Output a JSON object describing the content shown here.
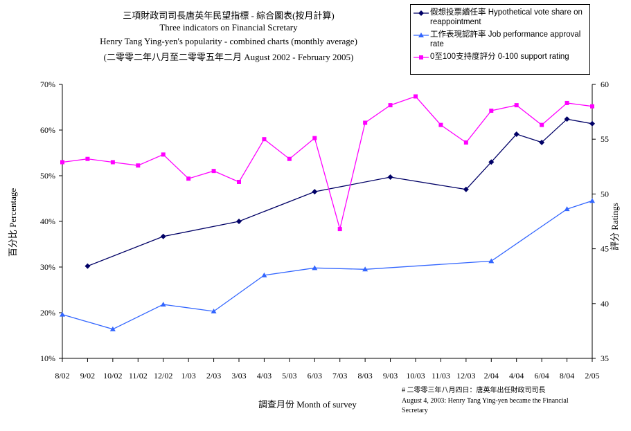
{
  "chart_data": {
    "type": "line",
    "title": "三項財政司司長唐英年民望指標 - 綜合圖表(按月計算)",
    "subtitle": [
      "Three indicators on Financial Scretary",
      "Henry Tang Ying-yen's popularity - combined charts (monthly average)",
      "(二零零二年八月至二零零五年二月 August 2002 - February 2005)"
    ],
    "categories": [
      "8/02",
      "9/02",
      "10/02",
      "11/02",
      "12/02",
      "1/03",
      "2/03",
      "3/03",
      "4/03",
      "5/03",
      "6/03",
      "7/03",
      "8/03",
      "9/03",
      "10/03",
      "11/03",
      "12/03",
      "2/04",
      "4/04",
      "6/04",
      "8/04",
      "2/05"
    ],
    "xlabel": "調查月份 Month of survey",
    "ylabel": "百分比 Percentage",
    "y2label": "評分 Ratings",
    "ylim": [
      10,
      70
    ],
    "y2lim": [
      35,
      60
    ],
    "yticks": [
      "10%",
      "20%",
      "30%",
      "40%",
      "50%",
      "60%",
      "70%"
    ],
    "y2ticks": [
      "35",
      "40",
      "45",
      "50",
      "55",
      "60"
    ],
    "series": [
      {
        "name": "假想投票續任率 Hypothetical vote share on reappointment",
        "axis": "left",
        "marker": "diamond",
        "color": "#000066",
        "values": [
          null,
          30.2,
          null,
          null,
          36.7,
          null,
          null,
          40.0,
          null,
          null,
          46.5,
          null,
          null,
          49.7,
          null,
          null,
          47.0,
          53.0,
          59.1,
          57.3,
          62.4,
          61.4
        ]
      },
      {
        "name": "工作表現認許率 Job performance approval rate",
        "axis": "left",
        "marker": "triangle",
        "color": "#3366ff",
        "values": [
          19.6,
          null,
          16.4,
          null,
          21.8,
          null,
          20.3,
          null,
          28.2,
          null,
          29.8,
          null,
          29.5,
          null,
          null,
          null,
          null,
          31.3,
          null,
          null,
          42.7,
          44.5
        ]
      },
      {
        "name": "0至100支持度評分 0-100 support rating",
        "axis": "right",
        "marker": "square",
        "color": "#ff00ff",
        "values": [
          52.9,
          53.2,
          52.9,
          52.6,
          53.6,
          51.4,
          52.1,
          51.1,
          55.0,
          53.2,
          55.1,
          46.8,
          56.5,
          58.1,
          58.9,
          56.3,
          54.7,
          57.6,
          58.1,
          56.3,
          58.3,
          58.0
        ]
      }
    ],
    "annotation": [
      "# 二零零三年八月四日：唐英年出任財政司司長",
      "August 4, 2003: Henry Tang Ying-yen became the Financial",
      "Secretary"
    ],
    "grid": false,
    "legend_position": "top-right"
  }
}
